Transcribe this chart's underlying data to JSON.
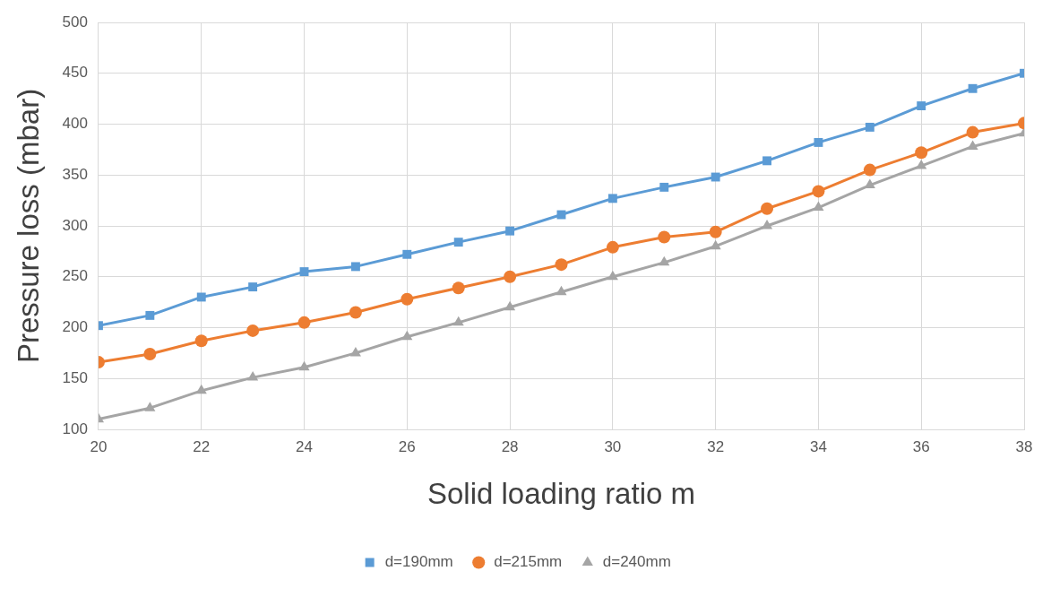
{
  "chart_data": {
    "type": "line",
    "xlabel": "Solid loading ratio m",
    "ylabel": "Pressure loss (mbar)",
    "x": [
      20,
      21,
      22,
      23,
      24,
      25,
      26,
      27,
      28,
      29,
      30,
      31,
      32,
      33,
      34,
      35,
      36,
      37,
      38
    ],
    "series": [
      {
        "name": "d=190mm",
        "color": "#5b9bd5",
        "marker": "square",
        "values": [
          202,
          212,
          230,
          240,
          255,
          260,
          272,
          284,
          295,
          311,
          327,
          338,
          348,
          364,
          382,
          397,
          418,
          435,
          450
        ]
      },
      {
        "name": "d=215mm",
        "color": "#ed7d31",
        "marker": "circle",
        "values": [
          166,
          174,
          187,
          197,
          205,
          215,
          228,
          239,
          250,
          262,
          279,
          289,
          294,
          317,
          334,
          355,
          372,
          392,
          401
        ]
      },
      {
        "name": "d=240mm",
        "color": "#a5a5a5",
        "marker": "triangle",
        "values": [
          110,
          121,
          138,
          151,
          161,
          175,
          191,
          205,
          220,
          235,
          250,
          264,
          280,
          300,
          318,
          340,
          359,
          378,
          391
        ]
      }
    ],
    "xlim": [
      20,
      38
    ],
    "xticks": [
      20,
      22,
      24,
      26,
      28,
      30,
      32,
      34,
      36,
      38
    ],
    "ylim": [
      100,
      500
    ],
    "yticks": [
      100,
      150,
      200,
      250,
      300,
      350,
      400,
      450,
      500
    ],
    "grid": true,
    "legend": "bottom",
    "line_style": "solid"
  }
}
